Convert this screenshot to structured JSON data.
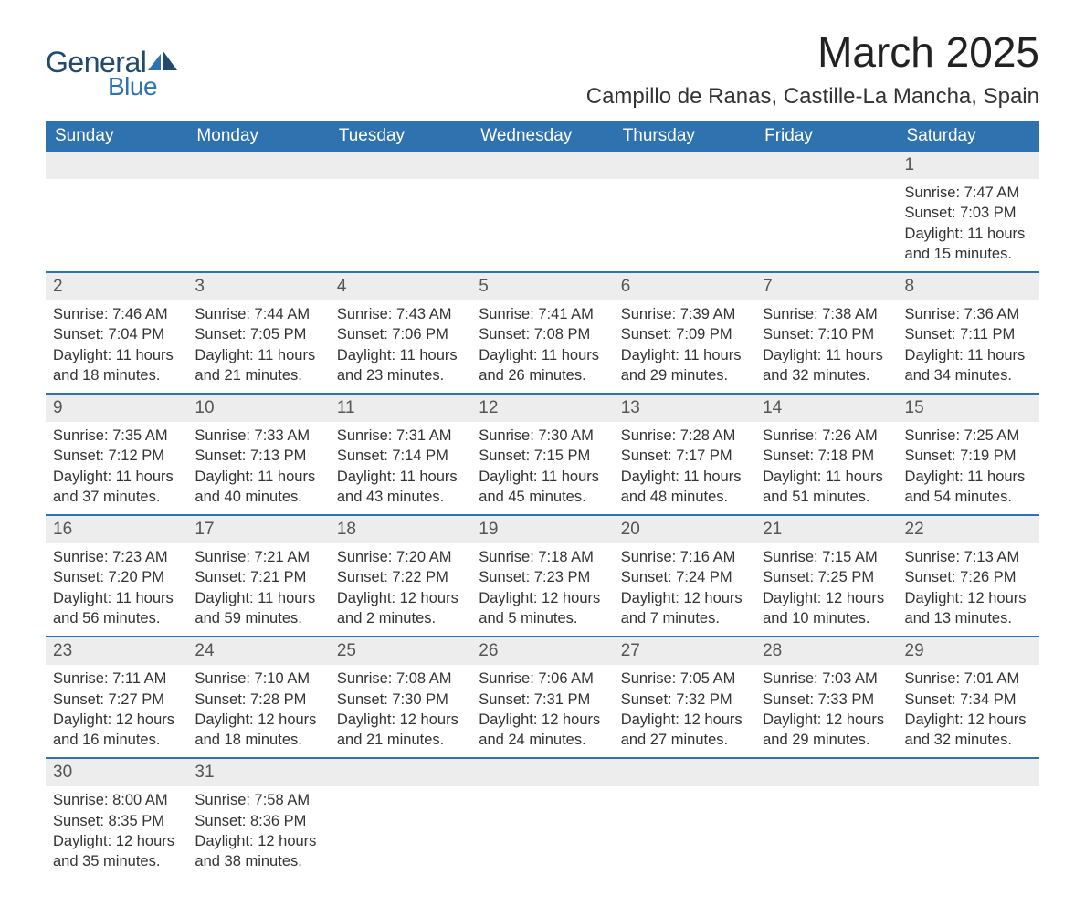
{
  "brand": {
    "word1": "General",
    "word2": "Blue"
  },
  "title": "March 2025",
  "location": "Campillo de Ranas, Castille-La Mancha, Spain",
  "colors": {
    "header_bg": "#2e72af",
    "header_text": "#ffffff",
    "daynum_bg": "#ededed",
    "row_border": "#2e72af",
    "body_text": "#333333",
    "logo_dark": "#214a6d",
    "logo_blue": "#2e72af",
    "page_bg": "#ffffff"
  },
  "day_headers": [
    "Sunday",
    "Monday",
    "Tuesday",
    "Wednesday",
    "Thursday",
    "Friday",
    "Saturday"
  ],
  "weeks": [
    {
      "nums": [
        "",
        "",
        "",
        "",
        "",
        "",
        "1"
      ],
      "cells": [
        "",
        "",
        "",
        "",
        "",
        "",
        "Sunrise: 7:47 AM\nSunset: 7:03 PM\nDaylight: 11 hours and 15 minutes."
      ]
    },
    {
      "nums": [
        "2",
        "3",
        "4",
        "5",
        "6",
        "7",
        "8"
      ],
      "cells": [
        "Sunrise: 7:46 AM\nSunset: 7:04 PM\nDaylight: 11 hours and 18 minutes.",
        "Sunrise: 7:44 AM\nSunset: 7:05 PM\nDaylight: 11 hours and 21 minutes.",
        "Sunrise: 7:43 AM\nSunset: 7:06 PM\nDaylight: 11 hours and 23 minutes.",
        "Sunrise: 7:41 AM\nSunset: 7:08 PM\nDaylight: 11 hours and 26 minutes.",
        "Sunrise: 7:39 AM\nSunset: 7:09 PM\nDaylight: 11 hours and 29 minutes.",
        "Sunrise: 7:38 AM\nSunset: 7:10 PM\nDaylight: 11 hours and 32 minutes.",
        "Sunrise: 7:36 AM\nSunset: 7:11 PM\nDaylight: 11 hours and 34 minutes."
      ]
    },
    {
      "nums": [
        "9",
        "10",
        "11",
        "12",
        "13",
        "14",
        "15"
      ],
      "cells": [
        "Sunrise: 7:35 AM\nSunset: 7:12 PM\nDaylight: 11 hours and 37 minutes.",
        "Sunrise: 7:33 AM\nSunset: 7:13 PM\nDaylight: 11 hours and 40 minutes.",
        "Sunrise: 7:31 AM\nSunset: 7:14 PM\nDaylight: 11 hours and 43 minutes.",
        "Sunrise: 7:30 AM\nSunset: 7:15 PM\nDaylight: 11 hours and 45 minutes.",
        "Sunrise: 7:28 AM\nSunset: 7:17 PM\nDaylight: 11 hours and 48 minutes.",
        "Sunrise: 7:26 AM\nSunset: 7:18 PM\nDaylight: 11 hours and 51 minutes.",
        "Sunrise: 7:25 AM\nSunset: 7:19 PM\nDaylight: 11 hours and 54 minutes."
      ]
    },
    {
      "nums": [
        "16",
        "17",
        "18",
        "19",
        "20",
        "21",
        "22"
      ],
      "cells": [
        "Sunrise: 7:23 AM\nSunset: 7:20 PM\nDaylight: 11 hours and 56 minutes.",
        "Sunrise: 7:21 AM\nSunset: 7:21 PM\nDaylight: 11 hours and 59 minutes.",
        "Sunrise: 7:20 AM\nSunset: 7:22 PM\nDaylight: 12 hours and 2 minutes.",
        "Sunrise: 7:18 AM\nSunset: 7:23 PM\nDaylight: 12 hours and 5 minutes.",
        "Sunrise: 7:16 AM\nSunset: 7:24 PM\nDaylight: 12 hours and 7 minutes.",
        "Sunrise: 7:15 AM\nSunset: 7:25 PM\nDaylight: 12 hours and 10 minutes.",
        "Sunrise: 7:13 AM\nSunset: 7:26 PM\nDaylight: 12 hours and 13 minutes."
      ]
    },
    {
      "nums": [
        "23",
        "24",
        "25",
        "26",
        "27",
        "28",
        "29"
      ],
      "cells": [
        "Sunrise: 7:11 AM\nSunset: 7:27 PM\nDaylight: 12 hours and 16 minutes.",
        "Sunrise: 7:10 AM\nSunset: 7:28 PM\nDaylight: 12 hours and 18 minutes.",
        "Sunrise: 7:08 AM\nSunset: 7:30 PM\nDaylight: 12 hours and 21 minutes.",
        "Sunrise: 7:06 AM\nSunset: 7:31 PM\nDaylight: 12 hours and 24 minutes.",
        "Sunrise: 7:05 AM\nSunset: 7:32 PM\nDaylight: 12 hours and 27 minutes.",
        "Sunrise: 7:03 AM\nSunset: 7:33 PM\nDaylight: 12 hours and 29 minutes.",
        "Sunrise: 7:01 AM\nSunset: 7:34 PM\nDaylight: 12 hours and 32 minutes."
      ]
    },
    {
      "nums": [
        "30",
        "31",
        "",
        "",
        "",
        "",
        ""
      ],
      "cells": [
        "Sunrise: 8:00 AM\nSunset: 8:35 PM\nDaylight: 12 hours and 35 minutes.",
        "Sunrise: 7:58 AM\nSunset: 8:36 PM\nDaylight: 12 hours and 38 minutes.",
        "",
        "",
        "",
        "",
        ""
      ]
    }
  ]
}
